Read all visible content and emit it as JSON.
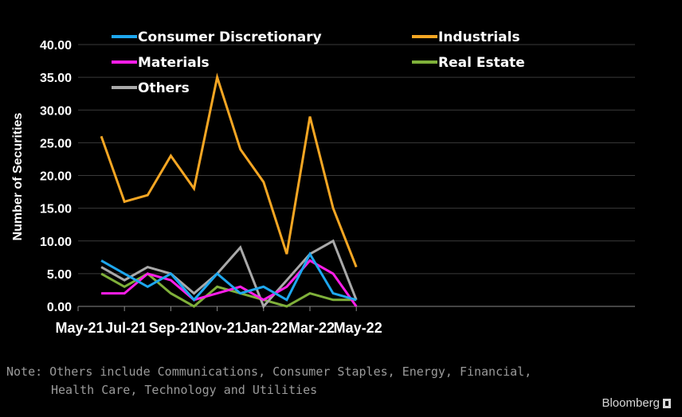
{
  "chart_data": {
    "type": "line",
    "ylabel": "Number of Securities",
    "ylim": [
      0,
      40
    ],
    "yticks": [
      "0.00",
      "5.00",
      "10.00",
      "15.00",
      "20.00",
      "25.00",
      "30.00",
      "35.00",
      "40.00"
    ],
    "xticks": [
      "May-21",
      "Jul-21",
      "Sep-21",
      "Nov-21",
      "Jan-22",
      "Mar-22",
      "May-22"
    ],
    "x": [
      "Jun-21",
      "Jul-21",
      "Aug-21",
      "Sep-21",
      "Oct-21",
      "Nov-21",
      "Dec-21",
      "Jan-22",
      "Feb-22",
      "Mar-22",
      "Apr-22",
      "May-22"
    ],
    "legend_placement": "top",
    "grid": true,
    "series": [
      {
        "name": "Consumer Discretionary",
        "color": "#1ea7ee",
        "values": [
          7,
          5,
          3,
          5,
          1,
          5,
          2,
          3,
          1,
          8,
          2,
          1
        ]
      },
      {
        "name": "Industrials",
        "color": "#f5a623",
        "values": [
          26,
          16,
          17,
          23,
          18,
          35,
          24,
          19,
          8,
          29,
          15,
          6
        ]
      },
      {
        "name": "Materials",
        "color": "#ff1ee8",
        "values": [
          2,
          2,
          5,
          4,
          1,
          2,
          3,
          1,
          3,
          7,
          5,
          0
        ]
      },
      {
        "name": "Real Estate",
        "color": "#7fb03a",
        "values": [
          5,
          3,
          5,
          2,
          0,
          3,
          2,
          1,
          0,
          2,
          1,
          1
        ]
      },
      {
        "name": "Others",
        "color": "#a9a9a9",
        "values": [
          6,
          4,
          6,
          5,
          2,
          5,
          9,
          0,
          4,
          8,
          10,
          1
        ]
      }
    ]
  },
  "note": {
    "line1": "Note: Others include Communications, Consumer Staples, Energy, Financial,",
    "line2": "Health Care, Technology and Utilities"
  },
  "brand": "Bloomberg"
}
